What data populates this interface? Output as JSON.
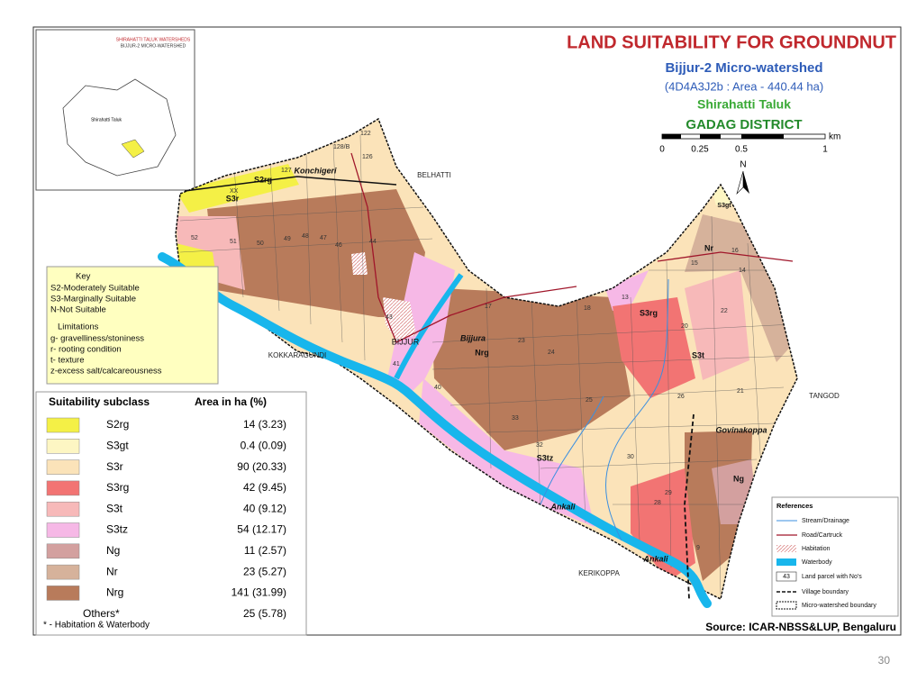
{
  "title": {
    "heading": "LAND SUITABILITY FOR GROUNDNUT",
    "watershed": "Bijjur-2 Micro-watershed",
    "area": "(4D4A3J2b : Area - 440.44 ha)",
    "taluk": "Shirahatti Taluk",
    "district": "GADAG DISTRICT"
  },
  "scale_bar": {
    "labels": [
      "0",
      "0.25",
      "0.5",
      "1"
    ],
    "unit": "km"
  },
  "north": "N",
  "inset": {
    "title": "SHIRAHATTI TALUK WATERSHEDS",
    "subtitle": "BIJJUR-2 MICRO-WATERSHED",
    "label": "Shirahatti Taluk"
  },
  "places": [
    "BELHATTI",
    "KOKKARAGUNDI",
    "TANGOD",
    "KERIKOPPA",
    "Konchigeri",
    "BIJJUR",
    "Bijjura",
    "Govinakoppa",
    "Ankali",
    "Ankali"
  ],
  "map_units": [
    "S2rg",
    "S3r",
    "S3gt",
    "Nr",
    "S3rg",
    "S3t",
    "Nrg",
    "S3tz",
    "Ng"
  ],
  "parcels": [
    "122",
    "128/B",
    "127",
    "126",
    "XX",
    "52",
    "51",
    "50",
    "49",
    "48",
    "47",
    "46",
    "44",
    "43",
    "41",
    "40",
    "33",
    "32",
    "30",
    "29",
    "28",
    "26",
    "25",
    "24",
    "23",
    "22",
    "21",
    "20",
    "18",
    "17",
    "16",
    "15",
    "14",
    "13",
    "9"
  ],
  "key": {
    "heading": "Key",
    "classes": [
      "S2-Moderately Suitable",
      "S3-Marginally Suitable",
      "N-Not Suitable"
    ],
    "limitations_heading": "Limitations",
    "limitations": [
      "g- gravelliness/stoniness",
      "r- rooting condition",
      "t- texture",
      "z-excess salt/calcareousness"
    ]
  },
  "legend": {
    "headers": [
      "Suitability subclass",
      "Area in ha (%)"
    ],
    "rows": [
      {
        "class": "S2rg",
        "area": "14 (3.23)",
        "color": "#f4f046"
      },
      {
        "class": "S3gt",
        "area": "0.4 (0.09)",
        "color": "#fdf6c3"
      },
      {
        "class": "S3r",
        "area": "90 (20.33)",
        "color": "#fbe3b9"
      },
      {
        "class": "S3rg",
        "area": "42 (9.45)",
        "color": "#f27473"
      },
      {
        "class": "S3t",
        "area": "40 (9.12)",
        "color": "#f7b9b9"
      },
      {
        "class": "S3tz",
        "area": "54 (12.17)",
        "color": "#f6b8e6"
      },
      {
        "class": "Ng",
        "area": "11 (2.57)",
        "color": "#d3a09f"
      },
      {
        "class": "Nr",
        "area": "23 (5.27)",
        "color": "#d6b29b"
      },
      {
        "class": "Nrg",
        "area": "141 (31.99)",
        "color": "#b87b5b"
      },
      {
        "class": "Others*",
        "area": "25 (5.78)"
      }
    ],
    "footnote": "* -  Habitation & Waterbody"
  },
  "references": {
    "heading": "References",
    "items": [
      "Stream/Drainage",
      "Road/Cartruck",
      "Habitation",
      "Waterbody",
      "Land parcel with No's",
      "Village boundary",
      "Micro-watershed boundary"
    ],
    "parcel_sample": "43"
  },
  "source": "Source: ICAR-NBSS&LUP, Bengaluru",
  "page_number": "30"
}
